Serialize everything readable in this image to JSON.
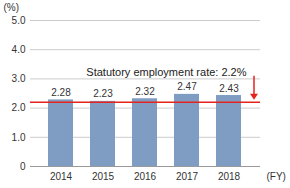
{
  "chart_data": {
    "type": "bar",
    "categories": [
      "2014",
      "2015",
      "2016",
      "2017",
      "2018"
    ],
    "values": [
      2.28,
      2.23,
      2.32,
      2.47,
      2.43
    ],
    "color": "#7f9cc2",
    "x_label": "(FY)",
    "y_label": "(%)",
    "ylim": [
      0,
      5
    ],
    "yticks": [
      0,
      {
        "value": 1,
        "label": "1.0"
      },
      {
        "value": 2,
        "label": "2.0"
      },
      {
        "value": 3,
        "label": "3.0"
      },
      {
        "value": 4,
        "label": "4.0"
      },
      {
        "value": 5,
        "label": "5.0"
      }
    ],
    "grid": true,
    "data_labels": true,
    "annotations": [
      {
        "text": "Statutory employment rate: 2.2%",
        "y": 2.2,
        "color": "#e5231f"
      }
    ]
  }
}
